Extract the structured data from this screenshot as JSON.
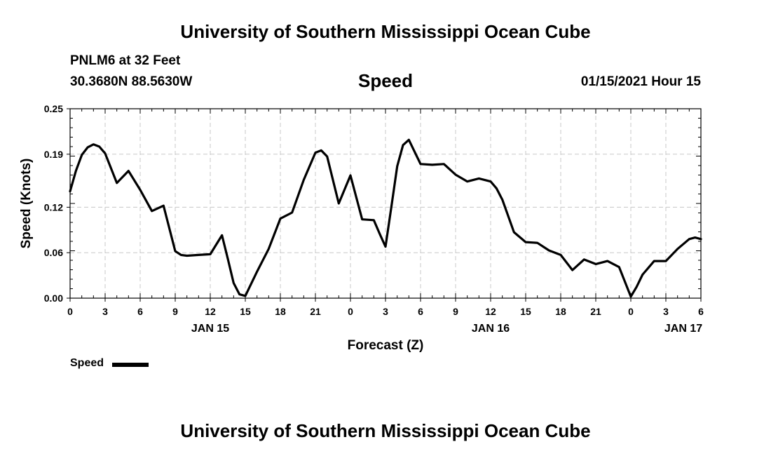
{
  "header": {
    "title_top": "University of Southern Mississippi Ocean Cube",
    "station": "PNLM6 at 32 Feet",
    "coords": "30.3680N 88.5630W",
    "variable": "Speed",
    "datetime": "01/15/2021 Hour 15",
    "title_bottom": "University of Southern Mississippi Ocean Cube"
  },
  "chart_data": {
    "type": "line",
    "xlabel": "Forecast (Z)",
    "ylabel": "Speed (Knots)",
    "ylim": [
      0,
      0.25
    ],
    "yticks": [
      "0.00",
      "0.06",
      "0.12",
      "0.19",
      "0.25"
    ],
    "xlim_hours": [
      0,
      54
    ],
    "xtick_labels": [
      "0",
      "3",
      "6",
      "9",
      "12",
      "15",
      "18",
      "21",
      "0",
      "3",
      "6",
      "9",
      "12",
      "15",
      "18",
      "21",
      "0",
      "3",
      "6"
    ],
    "date_labels": [
      {
        "hour": 12,
        "label": "JAN 15"
      },
      {
        "hour": 36,
        "label": "JAN 16"
      },
      {
        "hour": 52.5,
        "label": "JAN 17"
      }
    ],
    "grid": true,
    "legend": {
      "position": "bottom-left",
      "label": "Speed"
    },
    "series": [
      {
        "name": "Speed",
        "color": "#000000",
        "x": [
          0,
          0.5,
          1,
          1.5,
          2,
          2.5,
          3,
          4,
          5,
          6,
          7,
          8,
          9,
          9.5,
          10,
          11,
          12,
          13,
          13.5,
          14,
          14.5,
          15,
          16,
          17,
          18,
          19,
          20,
          21,
          21.5,
          22,
          23,
          24,
          25,
          26,
          26.5,
          27,
          27.5,
          28,
          28.5,
          29,
          30,
          31,
          32,
          33,
          34,
          35,
          36,
          36.5,
          37,
          38,
          39,
          40,
          41,
          42,
          43,
          44,
          45,
          46,
          47,
          48,
          48.5,
          49,
          50,
          51,
          52,
          53,
          53.5,
          54
        ],
        "values": [
          0.141,
          0.168,
          0.189,
          0.199,
          0.203,
          0.2,
          0.191,
          0.152,
          0.168,
          0.143,
          0.115,
          0.122,
          0.062,
          0.057,
          0.056,
          0.057,
          0.058,
          0.083,
          0.052,
          0.02,
          0.005,
          0.003,
          0.035,
          0.065,
          0.105,
          0.113,
          0.156,
          0.192,
          0.195,
          0.187,
          0.125,
          0.162,
          0.104,
          0.103,
          0.085,
          0.068,
          0.12,
          0.174,
          0.202,
          0.209,
          0.177,
          0.176,
          0.177,
          0.163,
          0.154,
          0.158,
          0.154,
          0.145,
          0.13,
          0.087,
          0.074,
          0.073,
          0.063,
          0.057,
          0.037,
          0.051,
          0.045,
          0.049,
          0.041,
          0.002,
          0.015,
          0.031,
          0.049,
          0.049,
          0.065,
          0.078,
          0.08,
          0.078
        ]
      }
    ]
  }
}
